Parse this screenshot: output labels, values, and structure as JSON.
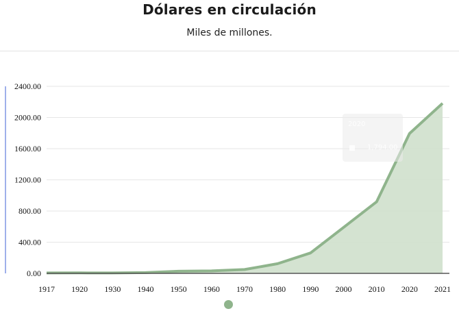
{
  "title": "Dólares en circulación",
  "subtitle": "Miles de millones.",
  "tooltip": {
    "year": "2020",
    "value": "1,794.00"
  },
  "colors": {
    "line": "#8fb48c",
    "area": "#cfe0cc",
    "axis_accent": "#9fb0ea",
    "baseline": "#555555",
    "grid": "#e6e6e6"
  },
  "chart_data": {
    "type": "area",
    "title": "Dólares en circulación",
    "subtitle": "Miles de millones.",
    "xlabel": "",
    "ylabel": "",
    "x": [
      "1917",
      "1920",
      "1930",
      "1940",
      "1950",
      "1960",
      "1970",
      "1980",
      "1990",
      "2000",
      "2010",
      "2020",
      "2021"
    ],
    "series": [
      {
        "values": [
          5,
          6,
          5,
          10,
          27,
          32,
          49,
          124,
          262,
          590,
          918,
          1794,
          2182
        ]
      }
    ],
    "y_ticks": [
      "0.00",
      "400.00",
      "800.00",
      "1200.00",
      "1600.00",
      "2000.00",
      "2400.00"
    ],
    "ylim": [
      0,
      2400
    ],
    "grid": true,
    "legend": "bottom-center"
  }
}
